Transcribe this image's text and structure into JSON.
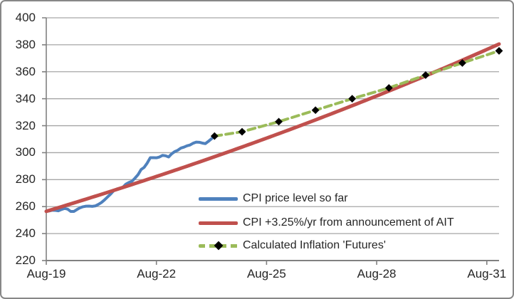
{
  "window": {
    "background": "#FFFFFF",
    "border_color": "#878787"
  },
  "chart_data": {
    "type": "line",
    "title": "",
    "grid": true,
    "text_color": "#262626",
    "gridline_color": "#A6A6A6",
    "axis_color": "#808080",
    "legend": {
      "position": "inside-lower-center",
      "entries": [
        "CPI price level so far",
        "CPI +3.25%/yr from announcement of AIT",
        "Calculated Inflation 'Futures'"
      ]
    },
    "y_axis": {
      "min": 220,
      "max": 400,
      "step": 20,
      "ticks": [
        220,
        240,
        260,
        280,
        300,
        320,
        340,
        360,
        380,
        400
      ]
    },
    "x_axis": {
      "tick_labels": [
        "Aug-19",
        "Aug-22",
        "Aug-25",
        "Aug-28",
        "Aug-31"
      ],
      "tick_months": [
        0,
        36,
        72,
        108,
        144
      ],
      "max_month": 148,
      "start_month": "Aug-2019"
    },
    "series": [
      {
        "name": "CPI price level so far",
        "color": "#4F81BD",
        "style": "solid",
        "width": 4,
        "start_month": 0,
        "monthly_values": [
          256.6,
          256.8,
          257.3,
          257.2,
          256.9,
          257.9,
          258.7,
          258.1,
          256.4,
          256.4,
          257.8,
          259.1,
          259.9,
          260.3,
          260.4,
          260.2,
          260.5,
          261.6,
          263.0,
          264.9,
          267.1,
          269.2,
          271.7,
          273.0,
          273.6,
          274.3,
          276.6,
          277.9,
          278.8,
          281.1,
          283.7,
          287.5,
          289.1,
          292.3,
          296.3,
          296.3,
          296.2,
          296.8,
          298.0,
          297.7,
          296.8,
          299.2,
          300.8,
          301.8,
          303.4,
          304.1,
          305.1,
          305.7,
          307.0,
          307.8,
          307.7,
          307.1,
          306.7,
          308.4,
          310.3,
          312.3
        ]
      },
      {
        "name": "CPI +3.25%/yr from announcement of AIT",
        "color": "#C0504D",
        "style": "solid",
        "width": 5,
        "generator": {
          "type": "compound_growth",
          "start_value": 256.5,
          "annual_rate_pct": 3.25,
          "start_month": 0,
          "end_month": 148
        }
      },
      {
        "name": "Calculated Inflation 'Futures'",
        "color": "#9BBB59",
        "style": "dashed",
        "width": 4,
        "marker": {
          "shape": "diamond",
          "color": "#000000"
        },
        "points": [
          {
            "month": 55,
            "value": 312.3
          },
          {
            "month": 64,
            "value": 315.5
          },
          {
            "month": 76,
            "value": 323.0
          },
          {
            "month": 88,
            "value": 331.5
          },
          {
            "month": 100,
            "value": 340.0
          },
          {
            "month": 112,
            "value": 348.0
          },
          {
            "month": 124,
            "value": 357.5
          },
          {
            "month": 136,
            "value": 366.5
          },
          {
            "month": 148,
            "value": 375.5
          }
        ]
      }
    ]
  }
}
